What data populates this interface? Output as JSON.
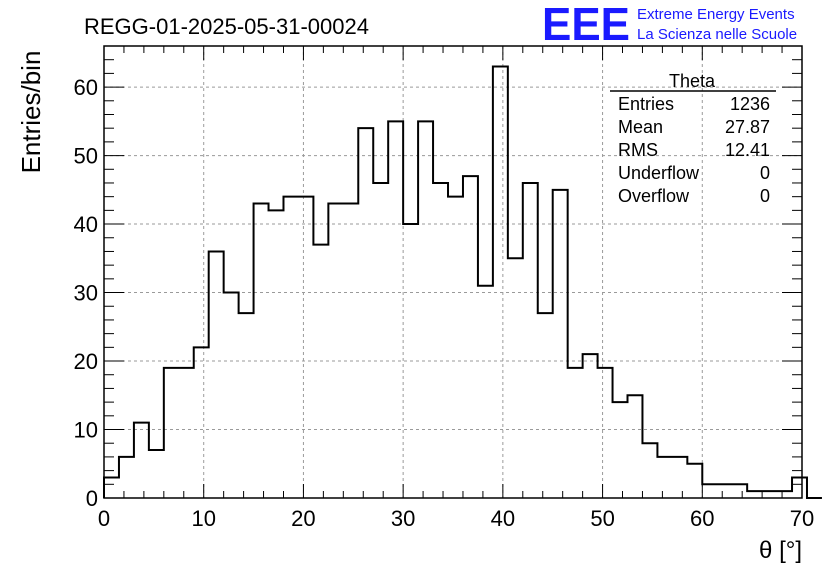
{
  "title": "REGG-01-2025-05-31-00024",
  "logo": {
    "mark": "EEE",
    "line1": "Extreme Energy Events",
    "line2": "La Scienza nelle Scuole",
    "color": "#1a1aff"
  },
  "stats": {
    "title": "Theta",
    "rows": [
      {
        "label": "Entries",
        "value": "1236"
      },
      {
        "label": "Mean",
        "value": "27.87"
      },
      {
        "label": "RMS",
        "value": "12.41"
      },
      {
        "label": "Underflow",
        "value": "0"
      },
      {
        "label": "Overflow",
        "value": "0"
      }
    ]
  },
  "chart_data": {
    "type": "histogram",
    "title": "REGG-01-2025-05-31-00024",
    "xlabel": "θ [°]",
    "ylabel": "Entries/bin",
    "xlim": [
      0,
      70
    ],
    "ylim": [
      0,
      66
    ],
    "bin_width": 1.5,
    "bin_start": 0,
    "counts": [
      3,
      6,
      11,
      7,
      19,
      19,
      22,
      36,
      30,
      27,
      43,
      42,
      44,
      44,
      37,
      43,
      43,
      54,
      46,
      55,
      40,
      55,
      46,
      44,
      47,
      31,
      63,
      35,
      46,
      27,
      45,
      19,
      21,
      19,
      14,
      15,
      8,
      6,
      6,
      5,
      2,
      2,
      2,
      1,
      1,
      1,
      3,
      0
    ],
    "x_ticks": [
      "0",
      "10",
      "20",
      "30",
      "40",
      "50",
      "60",
      "70"
    ],
    "y_ticks": [
      "0",
      "10",
      "20",
      "30",
      "40",
      "50",
      "60"
    ],
    "grid": true,
    "line_color": "#000000"
  }
}
